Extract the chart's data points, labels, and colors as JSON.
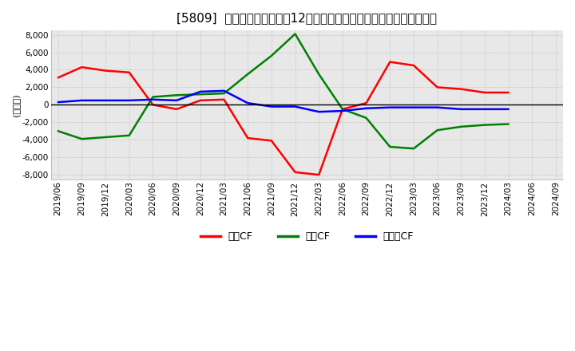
{
  "title": "[5809]  キャッシュフローの12か月移動合計の対前年同期増減額の推移",
  "ylabel": "(百万円)",
  "ylim": [
    -8500,
    8500
  ],
  "yticks": [
    -8000,
    -6000,
    -4000,
    -2000,
    0,
    2000,
    4000,
    6000,
    8000
  ],
  "legend_labels": [
    "営業CF",
    "投資CF",
    "フリーCF"
  ],
  "line_colors": [
    "#ff0000",
    "#008000",
    "#0000ff"
  ],
  "dates": [
    "2019/06",
    "2019/09",
    "2019/12",
    "2020/03",
    "2020/06",
    "2020/09",
    "2020/12",
    "2021/03",
    "2021/06",
    "2021/09",
    "2021/12",
    "2022/03",
    "2022/06",
    "2022/09",
    "2022/12",
    "2023/03",
    "2023/06",
    "2023/09",
    "2023/12",
    "2024/03",
    "2024/06",
    "2024/09"
  ],
  "operating_cf": [
    3100,
    4300,
    3900,
    3700,
    0,
    -500,
    500,
    600,
    -3800,
    -4100,
    -7700,
    -8000,
    -500,
    200,
    4900,
    4500,
    2000,
    1800,
    1400,
    1400,
    null,
    null
  ],
  "investing_cf": [
    -3000,
    -3900,
    -3700,
    -3500,
    900,
    1100,
    1200,
    1300,
    3500,
    5600,
    8100,
    3500,
    -500,
    -1500,
    -4800,
    -5000,
    -2900,
    -2500,
    -2300,
    -2200,
    null,
    null
  ],
  "free_cf": [
    300,
    500,
    500,
    500,
    600,
    500,
    1500,
    1600,
    200,
    -200,
    -200,
    -800,
    -700,
    -400,
    -300,
    -300,
    -300,
    -500,
    -500,
    -500,
    null,
    null
  ],
  "background_color": "#ffffff",
  "plot_bg_color": "#e8e8e8",
  "grid_color": "#aaaaaa",
  "title_fontsize": 11,
  "axis_fontsize": 7.5,
  "ylabel_fontsize": 8,
  "linewidth": 1.8
}
